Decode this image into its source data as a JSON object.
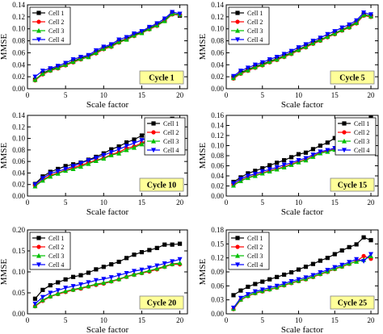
{
  "chart_data": [
    {
      "type": "line",
      "xlabel": "Scale factor",
      "ylabel": "MMSE",
      "annotation": "Cycle 1",
      "annotation_color": "#FFFF99",
      "xlim": [
        0,
        21
      ],
      "ylim": [
        0.0,
        0.14
      ],
      "xticks": [
        0,
        5,
        10,
        15,
        20
      ],
      "yticks": [
        0.0,
        0.02,
        0.04,
        0.06,
        0.08,
        0.1,
        0.12,
        0.14
      ],
      "ytick_labels": [
        "0.00",
        "0.02",
        "0.04",
        "0.06",
        "0.08",
        "0.10",
        "0.12",
        "0.14"
      ],
      "legend_position": "top-left",
      "x": [
        1,
        2,
        3,
        4,
        5,
        6,
        7,
        8,
        9,
        10,
        11,
        12,
        13,
        14,
        15,
        16,
        17,
        18,
        19,
        20
      ],
      "series": [
        {
          "name": "Cell 1",
          "color": "#000000",
          "marker": "square",
          "values": [
            0.015,
            0.026,
            0.032,
            0.036,
            0.04,
            0.046,
            0.051,
            0.054,
            0.061,
            0.068,
            0.072,
            0.079,
            0.083,
            0.09,
            0.094,
            0.101,
            0.107,
            0.114,
            0.126,
            0.122
          ]
        },
        {
          "name": "Cell 2",
          "color": "#FF0000",
          "marker": "circle",
          "values": [
            0.014,
            0.024,
            0.03,
            0.034,
            0.039,
            0.044,
            0.049,
            0.053,
            0.059,
            0.066,
            0.07,
            0.077,
            0.082,
            0.088,
            0.093,
            0.099,
            0.105,
            0.113,
            0.124,
            0.123
          ]
        },
        {
          "name": "Cell 3",
          "color": "#00C000",
          "marker": "triangle-up",
          "values": [
            0.015,
            0.025,
            0.031,
            0.035,
            0.04,
            0.045,
            0.05,
            0.053,
            0.06,
            0.067,
            0.071,
            0.078,
            0.082,
            0.089,
            0.093,
            0.1,
            0.106,
            0.113,
            0.125,
            0.124
          ]
        },
        {
          "name": "Cell 4",
          "color": "#0000FF",
          "marker": "triangle-down",
          "values": [
            0.02,
            0.03,
            0.034,
            0.038,
            0.043,
            0.049,
            0.053,
            0.056,
            0.064,
            0.07,
            0.074,
            0.082,
            0.086,
            0.092,
            0.096,
            0.103,
            0.109,
            0.117,
            0.128,
            0.125
          ]
        }
      ]
    },
    {
      "type": "line",
      "xlabel": "Scale factor",
      "ylabel": "MMSE",
      "annotation": "Cycle 5",
      "annotation_color": "#FFFF99",
      "xlim": [
        0,
        21
      ],
      "ylim": [
        0.0,
        0.14
      ],
      "xticks": [
        0,
        5,
        10,
        15,
        20
      ],
      "yticks": [
        0.0,
        0.02,
        0.04,
        0.06,
        0.08,
        0.1,
        0.12,
        0.14
      ],
      "ytick_labels": [
        "0.00",
        "0.02",
        "0.04",
        "0.06",
        "0.08",
        "0.10",
        "0.12",
        "0.14"
      ],
      "legend_position": "top-left",
      "x": [
        1,
        2,
        3,
        4,
        5,
        6,
        7,
        8,
        9,
        10,
        11,
        12,
        13,
        14,
        15,
        16,
        17,
        18,
        19,
        20
      ],
      "series": [
        {
          "name": "Cell 1",
          "color": "#000000",
          "marker": "square",
          "values": [
            0.019,
            0.027,
            0.032,
            0.037,
            0.041,
            0.046,
            0.05,
            0.055,
            0.06,
            0.066,
            0.071,
            0.077,
            0.082,
            0.087,
            0.093,
            0.098,
            0.104,
            0.111,
            0.124,
            0.121
          ]
        },
        {
          "name": "Cell 2",
          "color": "#FF0000",
          "marker": "circle",
          "values": [
            0.017,
            0.025,
            0.03,
            0.035,
            0.039,
            0.044,
            0.048,
            0.053,
            0.058,
            0.064,
            0.069,
            0.075,
            0.08,
            0.086,
            0.091,
            0.097,
            0.102,
            0.109,
            0.122,
            0.12
          ]
        },
        {
          "name": "Cell 3",
          "color": "#00C000",
          "marker": "triangle-up",
          "values": [
            0.018,
            0.026,
            0.031,
            0.036,
            0.04,
            0.045,
            0.049,
            0.054,
            0.059,
            0.065,
            0.07,
            0.076,
            0.081,
            0.087,
            0.092,
            0.098,
            0.103,
            0.11,
            0.123,
            0.121
          ]
        },
        {
          "name": "Cell 4",
          "color": "#0000FF",
          "marker": "triangle-down",
          "values": [
            0.021,
            0.03,
            0.035,
            0.04,
            0.044,
            0.049,
            0.053,
            0.058,
            0.063,
            0.069,
            0.074,
            0.08,
            0.085,
            0.091,
            0.096,
            0.102,
            0.107,
            0.114,
            0.127,
            0.124
          ]
        }
      ]
    },
    {
      "type": "line",
      "xlabel": "Scale factor",
      "ylabel": "MMSE",
      "annotation": "Cycle 10",
      "annotation_color": "#FFFF99",
      "xlim": [
        0,
        21
      ],
      "ylim": [
        0.0,
        0.14
      ],
      "xticks": [
        0,
        5,
        10,
        15,
        20
      ],
      "yticks": [
        0.0,
        0.02,
        0.04,
        0.06,
        0.08,
        0.1,
        0.12,
        0.14
      ],
      "ytick_labels": [
        "0.00",
        "0.02",
        "0.04",
        "0.06",
        "0.08",
        "0.10",
        "0.12",
        "0.14"
      ],
      "legend_position": "top-right",
      "x": [
        1,
        2,
        3,
        4,
        5,
        6,
        7,
        8,
        9,
        10,
        11,
        12,
        13,
        14,
        15,
        16,
        17,
        18,
        19,
        20
      ],
      "series": [
        {
          "name": "Cell 1",
          "color": "#000000",
          "marker": "square",
          "values": [
            0.021,
            0.034,
            0.042,
            0.047,
            0.052,
            0.055,
            0.058,
            0.063,
            0.068,
            0.074,
            0.081,
            0.086,
            0.093,
            0.098,
            0.105,
            0.112,
            0.118,
            0.126,
            0.134,
            0.13
          ]
        },
        {
          "name": "Cell 2",
          "color": "#FF0000",
          "marker": "circle",
          "values": [
            0.018,
            0.028,
            0.036,
            0.04,
            0.045,
            0.049,
            0.053,
            0.058,
            0.062,
            0.066,
            0.072,
            0.076,
            0.083,
            0.086,
            0.092,
            0.099,
            0.104,
            0.113,
            0.123,
            0.119
          ]
        },
        {
          "name": "Cell 3",
          "color": "#00C000",
          "marker": "triangle-up",
          "values": [
            0.017,
            0.027,
            0.034,
            0.039,
            0.044,
            0.047,
            0.051,
            0.056,
            0.061,
            0.065,
            0.071,
            0.074,
            0.08,
            0.084,
            0.09,
            0.096,
            0.102,
            0.11,
            0.118,
            0.117
          ]
        },
        {
          "name": "Cell 4",
          "color": "#0000FF",
          "marker": "triangle-down",
          "values": [
            0.02,
            0.031,
            0.039,
            0.043,
            0.047,
            0.052,
            0.057,
            0.062,
            0.066,
            0.071,
            0.076,
            0.081,
            0.087,
            0.092,
            0.097,
            0.101,
            0.106,
            0.114,
            0.122,
            0.125
          ]
        }
      ]
    },
    {
      "type": "line",
      "xlabel": "Scale factor",
      "ylabel": "MMSE",
      "annotation": "Cycle 15",
      "annotation_color": "#FFFF99",
      "xlim": [
        0,
        21
      ],
      "ylim": [
        0.0,
        0.16
      ],
      "xticks": [
        0,
        5,
        10,
        15,
        20
      ],
      "yticks": [
        0.0,
        0.02,
        0.04,
        0.06,
        0.08,
        0.1,
        0.12,
        0.14,
        0.16
      ],
      "ytick_labels": [
        "0.00",
        "0.02",
        "0.04",
        "0.06",
        "0.08",
        "0.10",
        "0.12",
        "0.14",
        "0.16"
      ],
      "legend_position": "top-right",
      "x": [
        1,
        2,
        3,
        4,
        5,
        6,
        7,
        8,
        9,
        10,
        11,
        12,
        13,
        14,
        15,
        16,
        17,
        18,
        19,
        20
      ],
      "series": [
        {
          "name": "Cell 1",
          "color": "#000000",
          "marker": "square",
          "values": [
            0.028,
            0.037,
            0.045,
            0.05,
            0.055,
            0.061,
            0.066,
            0.071,
            0.077,
            0.083,
            0.086,
            0.093,
            0.1,
            0.106,
            0.115,
            0.121,
            0.128,
            0.137,
            0.146,
            0.155
          ]
        },
        {
          "name": "Cell 2",
          "color": "#FF0000",
          "marker": "circle",
          "values": [
            0.022,
            0.031,
            0.037,
            0.041,
            0.046,
            0.05,
            0.054,
            0.058,
            0.063,
            0.068,
            0.072,
            0.079,
            0.086,
            0.089,
            0.093,
            0.099,
            0.104,
            0.11,
            0.118,
            0.125
          ]
        },
        {
          "name": "Cell 3",
          "color": "#00C000",
          "marker": "triangle-up",
          "values": [
            0.021,
            0.03,
            0.036,
            0.04,
            0.045,
            0.049,
            0.053,
            0.057,
            0.062,
            0.067,
            0.071,
            0.078,
            0.085,
            0.088,
            0.092,
            0.098,
            0.103,
            0.109,
            0.117,
            0.124
          ]
        },
        {
          "name": "Cell 4",
          "color": "#0000FF",
          "marker": "triangle-down",
          "values": [
            0.025,
            0.034,
            0.04,
            0.044,
            0.049,
            0.053,
            0.057,
            0.062,
            0.066,
            0.071,
            0.075,
            0.082,
            0.088,
            0.091,
            0.095,
            0.101,
            0.106,
            0.112,
            0.12,
            0.127
          ]
        }
      ]
    },
    {
      "type": "line",
      "xlabel": "Scale factor",
      "ylabel": "MMSE",
      "annotation": "Cycle 20",
      "annotation_color": "#FFFF99",
      "xlim": [
        0,
        21
      ],
      "ylim": [
        0.0,
        0.2
      ],
      "xticks": [
        0,
        5,
        10,
        15,
        20
      ],
      "yticks": [
        0.0,
        0.05,
        0.1,
        0.15,
        0.2
      ],
      "ytick_labels": [
        "0.00",
        "0.05",
        "0.10",
        "0.15",
        "0.20"
      ],
      "legend_position": "top-left",
      "x": [
        1,
        2,
        3,
        4,
        5,
        6,
        7,
        8,
        9,
        10,
        11,
        12,
        13,
        14,
        15,
        16,
        17,
        18,
        19,
        20
      ],
      "series": [
        {
          "name": "Cell 1",
          "color": "#000000",
          "marker": "square",
          "values": [
            0.036,
            0.057,
            0.068,
            0.075,
            0.082,
            0.088,
            0.092,
            0.098,
            0.106,
            0.112,
            0.118,
            0.124,
            0.133,
            0.141,
            0.147,
            0.152,
            0.157,
            0.165,
            0.165,
            0.167
          ]
        },
        {
          "name": "Cell 2",
          "color": "#FF0000",
          "marker": "circle",
          "values": [
            0.018,
            0.031,
            0.041,
            0.047,
            0.052,
            0.057,
            0.06,
            0.065,
            0.069,
            0.072,
            0.077,
            0.082,
            0.088,
            0.093,
            0.097,
            0.101,
            0.106,
            0.112,
            0.118,
            0.118
          ]
        },
        {
          "name": "Cell 3",
          "color": "#00C000",
          "marker": "triangle-up",
          "values": [
            0.019,
            0.033,
            0.042,
            0.048,
            0.054,
            0.058,
            0.062,
            0.066,
            0.071,
            0.074,
            0.078,
            0.083,
            0.089,
            0.094,
            0.098,
            0.103,
            0.108,
            0.113,
            0.119,
            0.121
          ]
        },
        {
          "name": "Cell 4",
          "color": "#0000FF",
          "marker": "triangle-down",
          "values": [
            0.024,
            0.04,
            0.05,
            0.056,
            0.062,
            0.066,
            0.07,
            0.075,
            0.08,
            0.083,
            0.087,
            0.092,
            0.097,
            0.102,
            0.105,
            0.11,
            0.115,
            0.12,
            0.125,
            0.13
          ]
        }
      ]
    },
    {
      "type": "line",
      "xlabel": "Scale factor",
      "ylabel": "MMSE",
      "annotation": "Cycle 25",
      "annotation_color": "#FFFF99",
      "xlim": [
        0,
        21
      ],
      "ylim": [
        0.0,
        0.18
      ],
      "xticks": [
        0,
        5,
        10,
        15,
        20
      ],
      "yticks": [
        0.0,
        0.03,
        0.06,
        0.09,
        0.12,
        0.15,
        0.18
      ],
      "ytick_labels": [
        "0.00",
        "0.03",
        "0.06",
        "0.09",
        "0.12",
        "0.15",
        "0.18"
      ],
      "legend_position": "top-left",
      "x": [
        1,
        2,
        3,
        4,
        5,
        6,
        7,
        8,
        9,
        10,
        11,
        12,
        13,
        14,
        15,
        16,
        17,
        18,
        19,
        20
      ],
      "series": [
        {
          "name": "Cell 1",
          "color": "#000000",
          "marker": "square",
          "values": [
            0.04,
            0.05,
            0.058,
            0.064,
            0.069,
            0.074,
            0.079,
            0.084,
            0.089,
            0.095,
            0.101,
            0.107,
            0.114,
            0.12,
            0.128,
            0.136,
            0.143,
            0.149,
            0.164,
            0.158
          ]
        },
        {
          "name": "Cell 2",
          "color": "#FF0000",
          "marker": "circle",
          "values": [
            0.01,
            0.03,
            0.038,
            0.044,
            0.048,
            0.052,
            0.056,
            0.061,
            0.066,
            0.07,
            0.074,
            0.079,
            0.085,
            0.09,
            0.096,
            0.101,
            0.107,
            0.113,
            0.124,
            0.118
          ]
        },
        {
          "name": "Cell 3",
          "color": "#00C000",
          "marker": "triangle-up",
          "values": [
            0.011,
            0.031,
            0.039,
            0.045,
            0.049,
            0.053,
            0.057,
            0.062,
            0.067,
            0.071,
            0.075,
            0.08,
            0.086,
            0.091,
            0.097,
            0.102,
            0.108,
            0.112,
            0.116,
            0.124
          ]
        },
        {
          "name": "Cell 4",
          "color": "#0000FF",
          "marker": "triangle-down",
          "values": [
            0.013,
            0.034,
            0.042,
            0.048,
            0.052,
            0.056,
            0.06,
            0.065,
            0.07,
            0.074,
            0.078,
            0.083,
            0.089,
            0.094,
            0.1,
            0.105,
            0.111,
            0.117,
            0.113,
            0.128
          ]
        }
      ]
    }
  ]
}
